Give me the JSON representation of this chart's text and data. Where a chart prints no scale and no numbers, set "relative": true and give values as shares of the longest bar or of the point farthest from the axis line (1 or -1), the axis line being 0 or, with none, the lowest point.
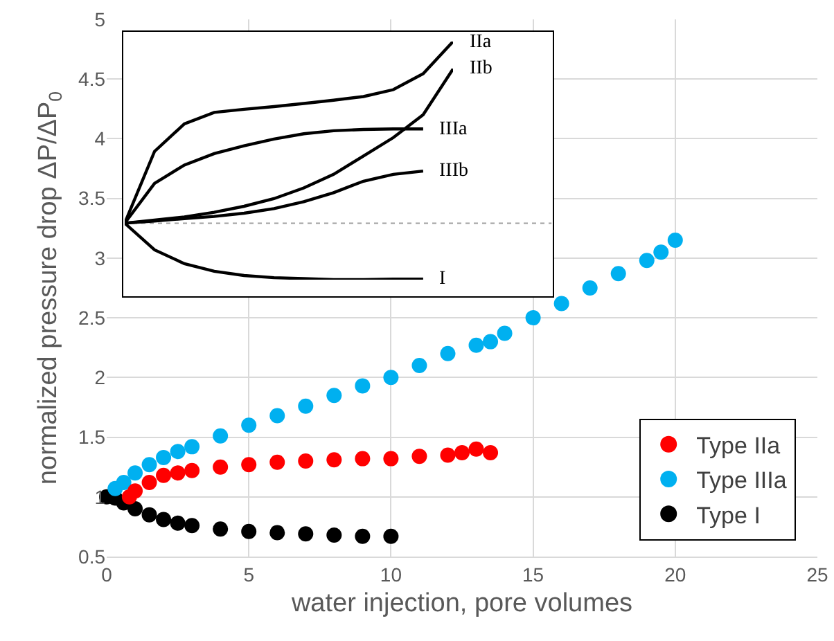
{
  "chart_data": [
    {
      "type": "scatter",
      "xlabel": "water injection, pore volumes",
      "ylabel": "normalized pressure drop ΔP/ΔP$_{0}$",
      "xlim": [
        0,
        25
      ],
      "xticks": [
        0,
        5,
        10,
        15,
        20,
        25
      ],
      "ylim": [
        0.5,
        5
      ],
      "yticks": [
        0.5,
        1,
        1.5,
        2,
        2.5,
        3,
        3.5,
        4,
        4.5,
        5
      ],
      "grid": true,
      "legend": "bottom right",
      "marker": "circle",
      "series": [
        {
          "name": "Type IIa",
          "color": "#ff0000",
          "x": [
            0.8,
            1,
            1.5,
            2,
            2.5,
            3,
            4,
            5,
            6,
            7,
            8,
            9,
            10,
            11,
            12,
            12.5,
            13,
            13.5
          ],
          "values": [
            1.0,
            1.05,
            1.12,
            1.18,
            1.2,
            1.22,
            1.25,
            1.27,
            1.29,
            1.3,
            1.31,
            1.32,
            1.32,
            1.34,
            1.35,
            1.37,
            1.4,
            1.37
          ]
        },
        {
          "name": "Type IIIa",
          "color": "#00b0f0",
          "x": [
            0.3,
            0.6,
            1,
            1.5,
            2,
            2.5,
            3,
            4,
            5,
            6,
            7,
            8,
            9,
            10,
            11,
            12,
            13,
            13.5,
            14,
            15,
            16,
            17,
            18,
            19,
            19.5,
            20
          ],
          "values": [
            1.07,
            1.12,
            1.2,
            1.27,
            1.33,
            1.38,
            1.42,
            1.51,
            1.6,
            1.68,
            1.76,
            1.85,
            1.93,
            2.0,
            2.1,
            2.2,
            2.27,
            2.3,
            2.37,
            2.5,
            2.62,
            2.75,
            2.87,
            2.98,
            3.05,
            3.15
          ]
        },
        {
          "name": "Type I",
          "color": "#000000",
          "x": [
            0,
            0.3,
            0.6,
            1,
            1.5,
            2,
            2.5,
            3,
            4,
            5,
            6,
            7,
            8,
            9,
            10
          ],
          "values": [
            1.0,
            0.99,
            0.95,
            0.9,
            0.85,
            0.81,
            0.78,
            0.76,
            0.73,
            0.71,
            0.7,
            0.69,
            0.68,
            0.67,
            0.67
          ]
        }
      ]
    },
    {
      "type": "line",
      "relative": true,
      "grid": false,
      "legend": false,
      "line_style": "solid",
      "categories": [
        null,
        null,
        null,
        null,
        null,
        null,
        null,
        null,
        null,
        null,
        null,
        null
      ],
      "ref_lines": [
        {
          "axis": "y",
          "value": 0,
          "color": "#a0a0a0",
          "line_style": "dotted"
        }
      ],
      "series": [
        {
          "name": "IIa",
          "color": "#000000",
          "values": [
            0,
            0.395,
            0.547,
            0.61,
            0.627,
            0.642,
            0.659,
            0.677,
            0.697,
            0.735,
            0.823,
            1.0
          ]
        },
        {
          "name": "IIb",
          "color": "#000000",
          "values": [
            0,
            0.017,
            0.034,
            0.06,
            0.093,
            0.135,
            0.194,
            0.269,
            0.37,
            0.471,
            0.597,
            0.849
          ]
        },
        {
          "name": "IIIa",
          "color": "#000000",
          "values": [
            0,
            0.219,
            0.32,
            0.383,
            0.426,
            0.463,
            0.492,
            0.509,
            0.516,
            0.519,
            0.519,
            null
          ]
        },
        {
          "name": "IIIb",
          "color": "#000000",
          "values": [
            0,
            0.012,
            0.025,
            0.037,
            0.055,
            0.08,
            0.118,
            0.168,
            0.231,
            0.269,
            0.287,
            null
          ]
        },
        {
          "name": "I",
          "color": "#000000",
          "values": [
            0,
            -0.147,
            -0.223,
            -0.265,
            -0.288,
            -0.3,
            -0.305,
            -0.311,
            -0.311,
            -0.308,
            -0.308,
            null
          ]
        }
      ]
    }
  ]
}
